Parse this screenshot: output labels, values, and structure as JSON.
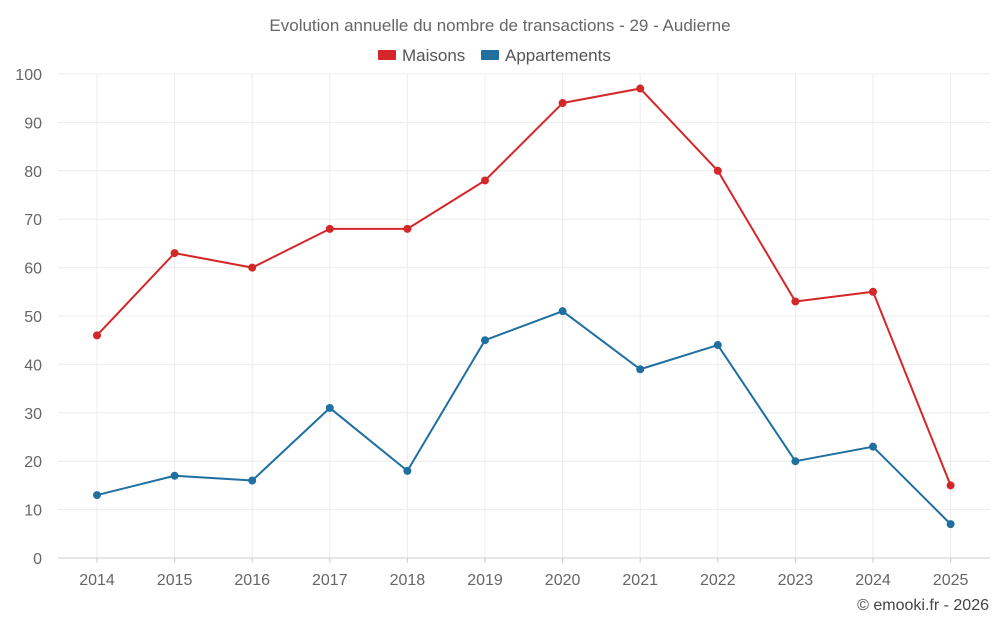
{
  "chart_data": {
    "type": "line",
    "title": "Evolution annuelle du nombre de transactions - 29 - Audierne",
    "categories": [
      "2014",
      "2015",
      "2016",
      "2017",
      "2018",
      "2019",
      "2020",
      "2021",
      "2022",
      "2023",
      "2024",
      "2025"
    ],
    "series": [
      {
        "name": "Maisons",
        "color": "#d62728",
        "values": [
          46,
          63,
          60,
          68,
          68,
          78,
          94,
          97,
          80,
          53,
          55,
          15
        ]
      },
      {
        "name": "Appartements",
        "color": "#1f6fa1",
        "values": [
          13,
          17,
          16,
          31,
          18,
          45,
          51,
          39,
          44,
          20,
          23,
          7
        ]
      }
    ],
    "ylim": [
      0,
      100
    ],
    "yticks": [
      0,
      10,
      20,
      30,
      40,
      50,
      60,
      70,
      80,
      90,
      100
    ],
    "grid": true,
    "legend": "top-center",
    "xlabel": "",
    "ylabel": ""
  },
  "credit": "© emooki.fr - 2026"
}
